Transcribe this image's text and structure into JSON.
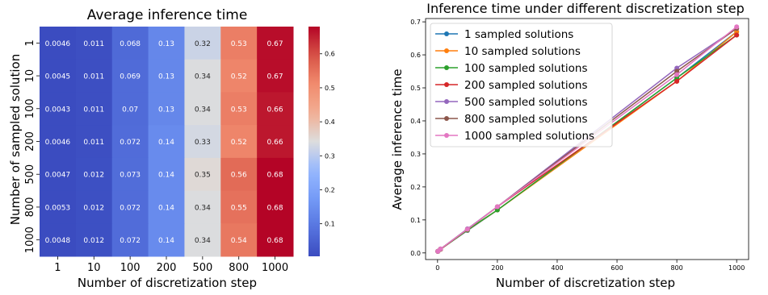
{
  "chart_data": [
    {
      "type": "heatmap",
      "title": "Average inference time",
      "xlabel": "Number of discretization step",
      "ylabel": "Number of sampled solution",
      "x_categories": [
        "1",
        "10",
        "100",
        "200",
        "500",
        "800",
        "1000"
      ],
      "y_categories": [
        "1",
        "10",
        "100",
        "200",
        "500",
        "800",
        "1000"
      ],
      "values": [
        [
          0.0046,
          0.011,
          0.068,
          0.13,
          0.32,
          0.53,
          0.67
        ],
        [
          0.0045,
          0.011,
          0.069,
          0.13,
          0.34,
          0.52,
          0.67
        ],
        [
          0.0043,
          0.011,
          0.07,
          0.13,
          0.34,
          0.53,
          0.66
        ],
        [
          0.0046,
          0.011,
          0.072,
          0.14,
          0.33,
          0.52,
          0.66
        ],
        [
          0.0047,
          0.012,
          0.073,
          0.14,
          0.35,
          0.56,
          0.68
        ],
        [
          0.0053,
          0.012,
          0.072,
          0.14,
          0.34,
          0.55,
          0.68
        ],
        [
          0.0048,
          0.012,
          0.072,
          0.14,
          0.34,
          0.54,
          0.68
        ]
      ],
      "colormap": "coolwarm",
      "colorbar_range": [
        0.0043,
        0.68
      ],
      "colorbar_ticks": [
        "0.1",
        "0.2",
        "0.3",
        "0.4",
        "0.5",
        "0.6"
      ]
    },
    {
      "type": "line",
      "title": "Inference time under different discretization step",
      "xlabel": "Number of discretization step",
      "ylabel": "Average inference time",
      "x": [
        1,
        10,
        100,
        200,
        800,
        1000
      ],
      "xlim": [
        -40,
        1040
      ],
      "ylim": [
        -0.02,
        0.71
      ],
      "xticks": [
        "0",
        "200",
        "400",
        "600",
        "800",
        "1000"
      ],
      "yticks": [
        "0.0",
        "0.1",
        "0.2",
        "0.3",
        "0.4",
        "0.5",
        "0.6",
        "0.7"
      ],
      "legend_position": "top-left",
      "grid": false,
      "series": [
        {
          "name": "1 sampled solutions",
          "color": "#1f77b4",
          "values": [
            0.0046,
            0.011,
            0.068,
            0.13,
            0.53,
            0.67
          ]
        },
        {
          "name": "10 sampled solutions",
          "color": "#ff7f0e",
          "values": [
            0.0045,
            0.011,
            0.069,
            0.13,
            0.52,
            0.67
          ]
        },
        {
          "name": "100 sampled solutions",
          "color": "#2ca02c",
          "values": [
            0.0043,
            0.011,
            0.07,
            0.13,
            0.53,
            0.66
          ]
        },
        {
          "name": "200 sampled solutions",
          "color": "#d62728",
          "values": [
            0.0046,
            0.011,
            0.072,
            0.14,
            0.52,
            0.66
          ]
        },
        {
          "name": "500 sampled solutions",
          "color": "#9467bd",
          "values": [
            0.0047,
            0.012,
            0.073,
            0.14,
            0.56,
            0.68
          ]
        },
        {
          "name": "800 sampled solutions",
          "color": "#8c564b",
          "values": [
            0.0053,
            0.012,
            0.072,
            0.14,
            0.55,
            0.68
          ]
        },
        {
          "name": "1000 sampled solutions",
          "color": "#e377c2",
          "values": [
            0.0048,
            0.012,
            0.072,
            0.14,
            0.54,
            0.685
          ]
        }
      ]
    }
  ]
}
